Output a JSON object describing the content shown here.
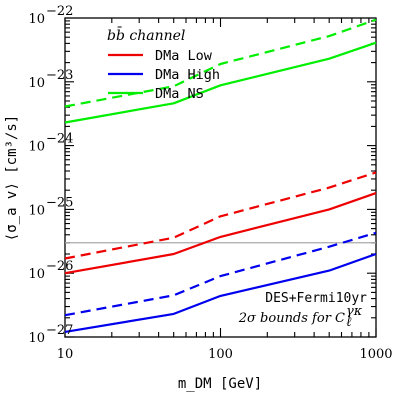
{
  "chart_data": {
    "type": "line",
    "xscale": "log",
    "yscale": "log",
    "xlim": [
      10,
      1000
    ],
    "ylim": [
      1e-27,
      1e-22
    ],
    "xlabel": "m_DM [GeV]",
    "ylabel": "⟨σ_a v⟩ [cm³/s]",
    "xticks": [
      {
        "value": 10,
        "label": "10"
      },
      {
        "value": 100,
        "label": "100"
      },
      {
        "value": 1000,
        "label": "1000"
      }
    ],
    "yticks": [
      {
        "value": 1e-27,
        "base": "10",
        "exp": "−27"
      },
      {
        "value": 1e-26,
        "base": "10",
        "exp": "−26"
      },
      {
        "value": 1e-25,
        "base": "10",
        "exp": "−25"
      },
      {
        "value": 1e-24,
        "base": "10",
        "exp": "−24"
      },
      {
        "value": 1e-23,
        "base": "10",
        "exp": "−23"
      },
      {
        "value": 1e-22,
        "base": "10",
        "exp": "−22"
      }
    ],
    "legend": {
      "title": "bb̄ channel",
      "placement": "top-left"
    },
    "reference_line": {
      "y": 3e-26,
      "color": "#aaaaaa"
    },
    "x": [
      10,
      50,
      100,
      500,
      1000
    ],
    "series": [
      {
        "name": "DMa Low",
        "color": "#ee0000",
        "style": "solid",
        "in_legend": true,
        "values": [
          1e-26,
          2e-26,
          3.7e-26,
          1e-25,
          1.8e-25
        ]
      },
      {
        "name": "",
        "color": "#ee0000",
        "style": "dashed",
        "in_legend": false,
        "values": [
          1.7e-26,
          3.6e-26,
          7.8e-26,
          2.2e-25,
          3.8e-25
        ]
      },
      {
        "name": "DMa High",
        "color": "#0000ee",
        "style": "solid",
        "in_legend": true,
        "values": [
          1.2e-27,
          2.3e-27,
          4.4e-27,
          1.1e-26,
          2e-26
        ]
      },
      {
        "name": "",
        "color": "#0000ee",
        "style": "dashed",
        "in_legend": false,
        "values": [
          2.2e-27,
          4.5e-27,
          9e-27,
          2.6e-26,
          4.3e-26
        ]
      },
      {
        "name": "DMa NS",
        "color": "#00ee00",
        "style": "solid",
        "in_legend": true,
        "values": [
          2.3e-24,
          4.6e-24,
          8.8e-24,
          2.3e-23,
          4.1e-23
        ]
      },
      {
        "name": "",
        "color": "#00ee00",
        "style": "dashed",
        "in_legend": false,
        "values": [
          4.1e-24,
          8.5e-24,
          1.9e-23,
          5.2e-23,
          9.4e-23
        ]
      }
    ],
    "annotation": {
      "line1": "DES+Fermi10yr",
      "line2": "2σ bounds for C",
      "line2_sub": "ℓ",
      "line2_sup": "γκ"
    }
  }
}
